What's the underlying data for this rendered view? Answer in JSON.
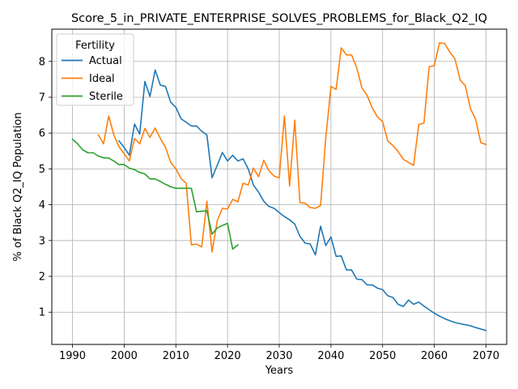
{
  "chart_data": {
    "type": "line",
    "title": "Score_5_in_PRIVATE_ENTERPRISE_SOLVES_PROBLEMS_for_Black_Q2_IQ",
    "xlabel": "Years",
    "ylabel": "% of Black Q2_IQ Population",
    "xlim": [
      1986,
      2074
    ],
    "ylim": [
      0.1,
      8.9
    ],
    "xticks": [
      1990,
      2000,
      2010,
      2020,
      2030,
      2040,
      2050,
      2060,
      2070
    ],
    "yticks": [
      1,
      2,
      3,
      4,
      5,
      6,
      7,
      8
    ],
    "grid": true,
    "legend": {
      "title": "Fertility",
      "placement": "top-left"
    },
    "series": [
      {
        "name": "Actual",
        "color": "#1f77b4",
        "x": [
          1999,
          2000,
          2001,
          2002,
          2003,
          2004,
          2005,
          2006,
          2007,
          2008,
          2009,
          2010,
          2011,
          2012,
          2013,
          2014,
          2015,
          2016,
          2017,
          2018,
          2019,
          2020,
          2021,
          2022,
          2023,
          2024,
          2025,
          2026,
          2027,
          2028,
          2029,
          2030,
          2031,
          2032,
          2033,
          2034,
          2035,
          2036,
          2037,
          2038,
          2039,
          2040,
          2041,
          2042,
          2043,
          2044,
          2045,
          2046,
          2047,
          2048,
          2049,
          2050,
          2051,
          2052,
          2053,
          2054,
          2055,
          2056,
          2057,
          2058,
          2059,
          2060,
          2061,
          2062,
          2063,
          2064,
          2065,
          2066,
          2067,
          2068,
          2069,
          2070
        ],
        "y": [
          5.78,
          5.6,
          5.38,
          6.25,
          5.97,
          7.44,
          7.02,
          7.76,
          7.34,
          7.3,
          6.86,
          6.72,
          6.4,
          6.3,
          6.2,
          6.2,
          6.05,
          5.95,
          4.75,
          5.1,
          5.46,
          5.22,
          5.38,
          5.22,
          5.28,
          5.0,
          4.55,
          4.35,
          4.1,
          3.95,
          3.9,
          3.78,
          3.67,
          3.58,
          3.46,
          3.12,
          2.93,
          2.9,
          2.6,
          3.4,
          2.86,
          3.1,
          2.56,
          2.57,
          2.18,
          2.18,
          1.92,
          1.91,
          1.76,
          1.76,
          1.67,
          1.63,
          1.46,
          1.41,
          1.22,
          1.16,
          1.34,
          1.22,
          1.28,
          1.17,
          1.07,
          0.97,
          0.89,
          0.82,
          0.76,
          0.71,
          0.68,
          0.65,
          0.62,
          0.57,
          0.53,
          0.49
        ]
      },
      {
        "name": "Ideal",
        "color": "#ff7f0e",
        "x": [
          1995,
          1996,
          1997,
          1998,
          1999,
          2000,
          2001,
          2002,
          2003,
          2004,
          2005,
          2006,
          2007,
          2008,
          2009,
          2010,
          2011,
          2012,
          2013,
          2014,
          2015,
          2016,
          2017,
          2018,
          2019,
          2020,
          2021,
          2022,
          2023,
          2024,
          2025,
          2026,
          2027,
          2028,
          2029,
          2030,
          2031,
          2032,
          2033,
          2034,
          2035,
          2036,
          2037,
          2038,
          2039,
          2040,
          2041,
          2042,
          2043,
          2044,
          2045,
          2046,
          2047,
          2048,
          2049,
          2050,
          2051,
          2052,
          2053,
          2054,
          2055,
          2056,
          2057,
          2058,
          2059,
          2060,
          2061,
          2062,
          2063,
          2064,
          2065,
          2066,
          2067,
          2068,
          2069,
          2070
        ],
        "y": [
          5.95,
          5.7,
          6.48,
          5.95,
          5.62,
          5.42,
          5.22,
          5.85,
          5.7,
          6.13,
          5.88,
          6.14,
          5.85,
          5.6,
          5.18,
          5.0,
          4.73,
          4.6,
          2.88,
          2.9,
          2.82,
          4.1,
          2.68,
          3.55,
          3.9,
          3.88,
          4.15,
          4.08,
          4.6,
          4.55,
          5.02,
          4.78,
          5.24,
          4.95,
          4.8,
          4.75,
          6.48,
          4.52,
          6.36,
          4.06,
          4.04,
          3.92,
          3.9,
          3.98,
          5.86,
          7.3,
          7.22,
          8.38,
          8.18,
          8.18,
          7.82,
          7.26,
          7.05,
          6.7,
          6.45,
          6.32,
          5.78,
          5.65,
          5.48,
          5.27,
          5.18,
          5.1,
          6.24,
          6.28,
          7.85,
          7.88,
          8.52,
          8.5,
          8.26,
          8.07,
          7.48,
          7.32,
          6.68,
          6.38,
          5.73,
          5.68
        ]
      },
      {
        "name": "Sterile",
        "color": "#2ca02c",
        "x": [
          1990,
          1991,
          1992,
          1993,
          1994,
          1995,
          1996,
          1997,
          1998,
          1999,
          2000,
          2001,
          2002,
          2003,
          2004,
          2005,
          2006,
          2007,
          2008,
          2009,
          2010,
          2011,
          2012,
          2013,
          2014,
          2015,
          2016,
          2017,
          2018,
          2019,
          2020,
          2021,
          2022
        ],
        "y": [
          5.83,
          5.7,
          5.53,
          5.45,
          5.45,
          5.36,
          5.31,
          5.3,
          5.22,
          5.12,
          5.12,
          5.02,
          4.98,
          4.9,
          4.86,
          4.72,
          4.72,
          4.65,
          4.57,
          4.5,
          4.46,
          4.46,
          4.46,
          4.46,
          3.8,
          3.82,
          3.83,
          3.18,
          3.35,
          3.42,
          3.48,
          2.76,
          2.88
        ]
      }
    ]
  }
}
